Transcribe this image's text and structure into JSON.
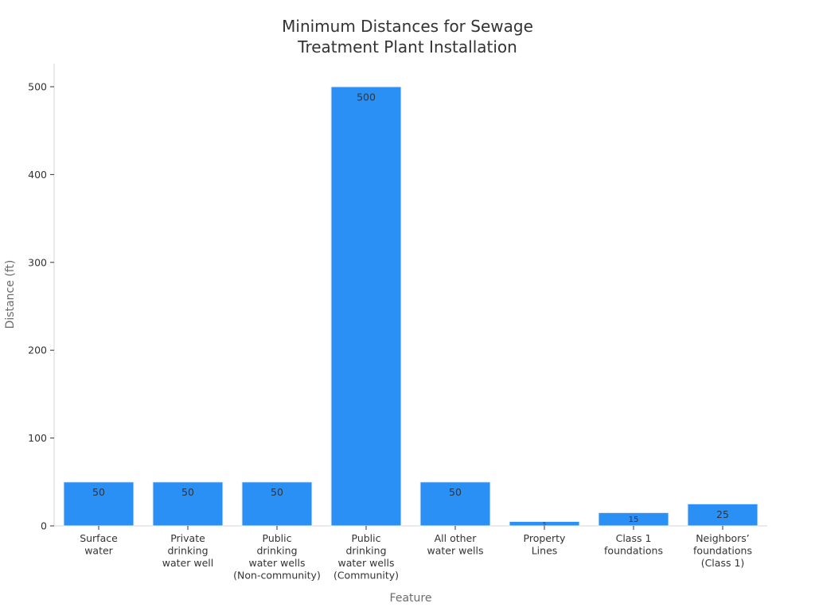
{
  "chart_data": {
    "type": "bar",
    "title": [
      "Minimum Distances for Sewage",
      "Treatment Plant Installation"
    ],
    "xlabel": "Feature",
    "ylabel": "Distance (ft)",
    "categories": [
      [
        "Surface",
        "water"
      ],
      [
        "Private",
        "drinking",
        "water well"
      ],
      [
        "Public",
        "drinking",
        "water wells",
        "(Non-community)"
      ],
      [
        "Public",
        "drinking",
        "water wells",
        "(Community)"
      ],
      [
        "All other",
        "water wells"
      ],
      [
        "Property",
        "Lines"
      ],
      [
        "Class 1",
        "foundations"
      ],
      [
        "Neighbors’",
        "foundations",
        "(Class 1)"
      ]
    ],
    "values": [
      50,
      50,
      50,
      500,
      50,
      5,
      15,
      25
    ],
    "ylim": [
      0,
      525
    ],
    "yticks": [
      0,
      100,
      200,
      300,
      400,
      500
    ],
    "grid": false,
    "legend": "none",
    "bar_color": "#2b90f6"
  }
}
